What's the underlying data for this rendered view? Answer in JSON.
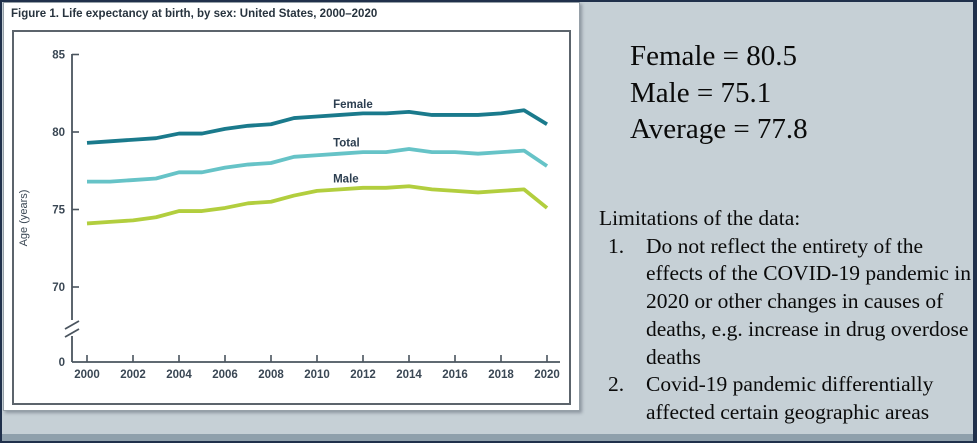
{
  "page": {
    "background_color": "#c6d0d6",
    "frame_color": "#20304b",
    "bottom_edge_color": "#8fa0ac"
  },
  "figure_card": {
    "title": "Figure 1. Life expectancy at birth, by sex: United States, 2000–2020"
  },
  "chart_data": {
    "type": "line",
    "title": "Figure 1. Life expectancy at birth, by sex: United States, 2000–2020",
    "xlabel": "",
    "ylabel": "Age (years)",
    "x": [
      2000,
      2001,
      2002,
      2003,
      2004,
      2005,
      2006,
      2007,
      2008,
      2009,
      2010,
      2011,
      2012,
      2013,
      2014,
      2015,
      2016,
      2017,
      2018,
      2019,
      2020
    ],
    "x_tick_labels": [
      "2000",
      "2002",
      "2004",
      "2006",
      "2008",
      "2010",
      "2012",
      "2014",
      "2016",
      "2018",
      "2020"
    ],
    "y_ticks": [
      85,
      80,
      75,
      70,
      0
    ],
    "ylim": [
      0,
      85
    ],
    "y_axis_break_between": [
      0,
      70
    ],
    "grid": false,
    "legend_position": "inline-labels-above-lines",
    "series": [
      {
        "name": "Female",
        "color": "#1a7a8c",
        "values": [
          79.3,
          79.4,
          79.5,
          79.6,
          79.9,
          79.9,
          80.2,
          80.4,
          80.5,
          80.9,
          81.0,
          81.1,
          81.2,
          81.2,
          81.3,
          81.1,
          81.1,
          81.1,
          81.2,
          81.4,
          80.5
        ]
      },
      {
        "name": "Total",
        "color": "#66c3c7",
        "values": [
          76.8,
          76.8,
          76.9,
          77.0,
          77.4,
          77.4,
          77.7,
          77.9,
          78.0,
          78.4,
          78.5,
          78.6,
          78.7,
          78.7,
          78.9,
          78.7,
          78.7,
          78.6,
          78.7,
          78.8,
          77.8
        ]
      },
      {
        "name": "Male",
        "color": "#b2ce3e",
        "values": [
          74.1,
          74.2,
          74.3,
          74.5,
          74.9,
          74.9,
          75.1,
          75.4,
          75.5,
          75.9,
          76.2,
          76.3,
          76.4,
          76.4,
          76.5,
          76.3,
          76.2,
          76.1,
          76.2,
          76.3,
          75.1
        ]
      }
    ]
  },
  "annotations": {
    "lines": [
      "Female = 80.5",
      "Male = 75.1",
      "Average = 77.8"
    ]
  },
  "limitations": {
    "heading": "Limitations of the data:",
    "items": [
      {
        "num": "1.",
        "text": "Do not reflect the entirety of the effects of the COVID-19 pandemic in 2020 or other changes in causes of deaths, e.g. increase in drug overdose deaths"
      },
      {
        "num": "2.",
        "text": "Covid-19 pandemic differentially affected certain geographic areas"
      }
    ]
  }
}
